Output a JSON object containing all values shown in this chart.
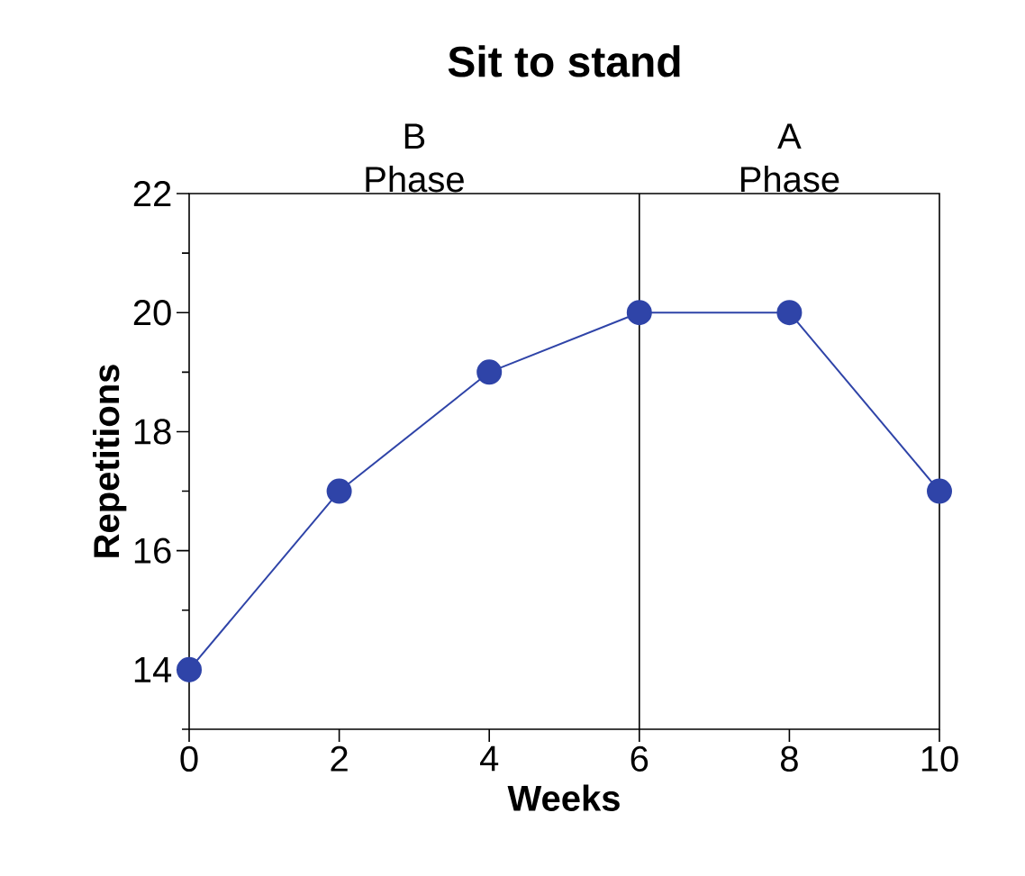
{
  "chart_data": {
    "type": "line",
    "title": "Sit to stand",
    "xlabel": "Weeks",
    "ylabel": "Repetitions",
    "x": [
      0,
      2,
      4,
      6,
      8,
      10
    ],
    "values": [
      14,
      17,
      19,
      20,
      20,
      17
    ],
    "color": "#2f44a8",
    "xlim": [
      0,
      10
    ],
    "xticks": [
      0,
      2,
      4,
      6,
      8,
      10
    ],
    "ylim": [
      13,
      22
    ],
    "yticks": [
      {
        "value": 13,
        "label": null
      },
      14,
      {
        "value": 15,
        "label": null
      },
      16,
      {
        "value": 17,
        "label": null
      },
      18,
      {
        "value": 19,
        "label": null
      },
      20,
      {
        "value": 21,
        "label": null
      },
      22
    ],
    "ref_lines": [
      {
        "axis": "x",
        "value": 6,
        "color": "#000000"
      }
    ],
    "annotations": [
      "B Phase",
      "A Phase"
    ],
    "marker": "circle",
    "line_style": "solid",
    "grid": false
  }
}
